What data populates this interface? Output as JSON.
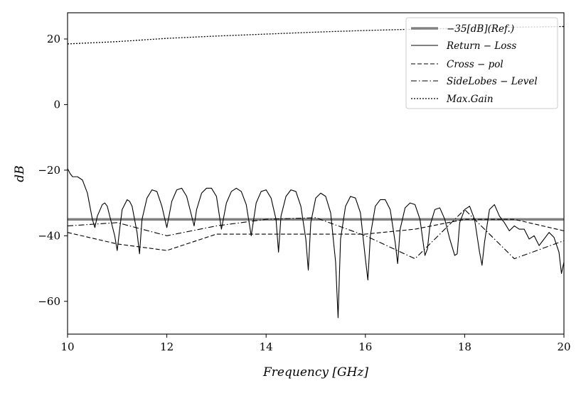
{
  "chart_data": {
    "type": "line",
    "title": "",
    "xlabel": "Frequency [GHz]",
    "ylabel": "dB",
    "xlim": [
      10,
      20
    ],
    "ylim": [
      -70,
      28
    ],
    "xticks": [
      10,
      12,
      14,
      16,
      18,
      20
    ],
    "yticks": [
      20,
      0,
      -20,
      -40,
      -60
    ],
    "xtick_labels": [
      "10",
      "12",
      "14",
      "16",
      "18",
      "20"
    ],
    "ytick_labels": [
      "20",
      "0",
      "−20",
      "−40",
      "−60"
    ],
    "grid": false,
    "legend_position": "top-right",
    "series": [
      {
        "name": "−35[dB](Ref.)",
        "style": "thick-solid",
        "color": "#808080",
        "x": [
          10,
          20
        ],
        "y": [
          -35,
          -35
        ]
      },
      {
        "name": "Return − Loss",
        "style": "solid",
        "color": "#000000",
        "x": [
          10.0,
          10.05,
          10.1,
          10.15,
          10.2,
          10.3,
          10.4,
          10.5,
          10.55,
          10.6,
          10.7,
          10.75,
          10.8,
          10.85,
          10.95,
          11.0,
          11.05,
          11.1,
          11.2,
          11.25,
          11.3,
          11.4,
          11.45,
          11.5,
          11.6,
          11.7,
          11.8,
          11.9,
          12.0,
          12.1,
          12.2,
          12.3,
          12.4,
          12.5,
          12.55,
          12.6,
          12.7,
          12.8,
          12.9,
          13.0,
          13.1,
          13.2,
          13.3,
          13.4,
          13.5,
          13.6,
          13.7,
          13.8,
          13.9,
          14.0,
          14.1,
          14.2,
          14.25,
          14.3,
          14.4,
          14.5,
          14.6,
          14.7,
          14.8,
          14.85,
          14.9,
          15.0,
          15.1,
          15.2,
          15.3,
          15.4,
          15.45,
          15.5,
          15.6,
          15.7,
          15.8,
          15.9,
          16.0,
          16.05,
          16.1,
          16.2,
          16.3,
          16.4,
          16.5,
          16.6,
          16.65,
          16.7,
          16.8,
          16.9,
          17.0,
          17.1,
          17.2,
          17.25,
          17.3,
          17.4,
          17.5,
          17.6,
          17.7,
          17.8,
          17.85,
          17.9,
          18.0,
          18.1,
          18.2,
          18.3,
          18.35,
          18.4,
          18.5,
          18.6,
          18.7,
          18.8,
          18.9,
          19.0,
          19.1,
          19.2,
          19.3,
          19.4,
          19.5,
          19.6,
          19.7,
          19.8,
          19.9,
          19.95,
          20.0
        ],
        "y": [
          -19.5,
          -21,
          -22,
          -22,
          -22,
          -23,
          -27,
          -35,
          -37.5,
          -34,
          -30.5,
          -30,
          -31,
          -34,
          -40,
          -44.5,
          -38,
          -32,
          -29,
          -29.5,
          -31,
          -39,
          -45.5,
          -35,
          -28.5,
          -26,
          -26.5,
          -31,
          -37.5,
          -29.5,
          -26,
          -25.5,
          -28,
          -34,
          -37,
          -32,
          -27,
          -25.5,
          -25.5,
          -28,
          -38,
          -30,
          -26.5,
          -25.5,
          -26.5,
          -30.5,
          -40,
          -30,
          -26.5,
          -26,
          -28.5,
          -35,
          -45,
          -34,
          -28,
          -26,
          -26.5,
          -31,
          -41,
          -50.5,
          -36,
          -28.5,
          -27,
          -28,
          -33,
          -48,
          -65,
          -41,
          -31,
          -28,
          -28.5,
          -33,
          -47,
          -53.5,
          -40,
          -31,
          -29,
          -29,
          -32,
          -42,
          -48.5,
          -38,
          -31.5,
          -30,
          -30.5,
          -35,
          -46,
          -44,
          -37,
          -32,
          -31.5,
          -35,
          -41,
          -46,
          -45.5,
          -36,
          -32,
          -31,
          -35,
          -45,
          -49,
          -42,
          -32,
          -30.5,
          -34,
          -36,
          -38.5,
          -37,
          -38,
          -38,
          -41,
          -40,
          -43,
          -41,
          -39,
          -40.5,
          -45,
          -51.5,
          -48
        ]
      },
      {
        "name": "Cross − pol",
        "style": "dashed",
        "color": "#000000",
        "x": [
          10,
          11,
          12,
          13,
          14,
          15,
          16,
          17,
          18,
          19,
          20
        ],
        "y": [
          -39,
          -42.5,
          -44.5,
          -39.5,
          -39.5,
          -39.5,
          -39.5,
          -38,
          -35,
          -35,
          -38.5
        ]
      },
      {
        "name": "SideLobes − Level",
        "style": "dashdot",
        "color": "#000000",
        "x": [
          10,
          11,
          12,
          13,
          14,
          15,
          16,
          17,
          18,
          19,
          20
        ],
        "y": [
          -37,
          -36,
          -40,
          -37,
          -35,
          -34.5,
          -40,
          -47,
          -32,
          -47,
          -41.5
        ]
      },
      {
        "name": "Max.Gain",
        "style": "dotted",
        "color": "#000000",
        "x": [
          10,
          11,
          12,
          13,
          14,
          15,
          16,
          17,
          18,
          19,
          20
        ],
        "y": [
          18.5,
          19.2,
          20.2,
          20.9,
          21.5,
          22.1,
          22.6,
          23.0,
          23.3,
          23.6,
          23.8
        ]
      }
    ]
  }
}
